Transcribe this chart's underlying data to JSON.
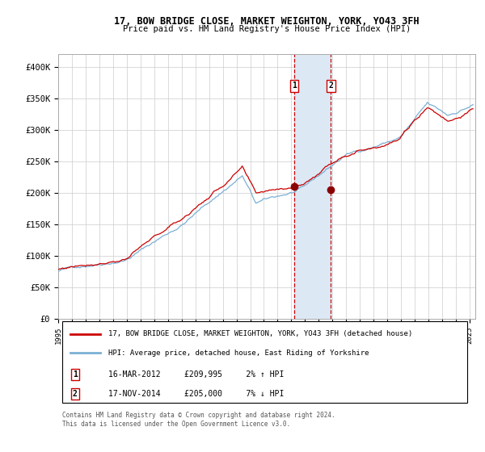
{
  "title": "17, BOW BRIDGE CLOSE, MARKET WEIGHTON, YORK, YO43 3FH",
  "subtitle": "Price paid vs. HM Land Registry's House Price Index (HPI)",
  "ylim": [
    0,
    420000
  ],
  "yticks": [
    0,
    50000,
    100000,
    150000,
    200000,
    250000,
    300000,
    350000,
    400000
  ],
  "ytick_labels": [
    "£0",
    "£50K",
    "£100K",
    "£150K",
    "£200K",
    "£250K",
    "£300K",
    "£350K",
    "£400K"
  ],
  "hpi_color": "#7ab0d4",
  "property_color": "#cc0000",
  "dot_color": "#8b0000",
  "shade_color": "#dce9f5",
  "vline_color": "#cc0000",
  "legend_line1": "17, BOW BRIDGE CLOSE, MARKET WEIGHTON, YORK, YO43 3FH (detached house)",
  "legend_line2": "HPI: Average price, detached house, East Riding of Yorkshire",
  "purchase1_year": 2012,
  "purchase1_month": 3,
  "purchase1_day": 16,
  "purchase1_price": 209995,
  "purchase2_year": 2014,
  "purchase2_month": 11,
  "purchase2_day": 17,
  "purchase2_price": 205000,
  "footer": "Contains HM Land Registry data © Crown copyright and database right 2024.\nThis data is licensed under the Open Government Licence v3.0.",
  "start_year": 1995,
  "end_year": 2025
}
